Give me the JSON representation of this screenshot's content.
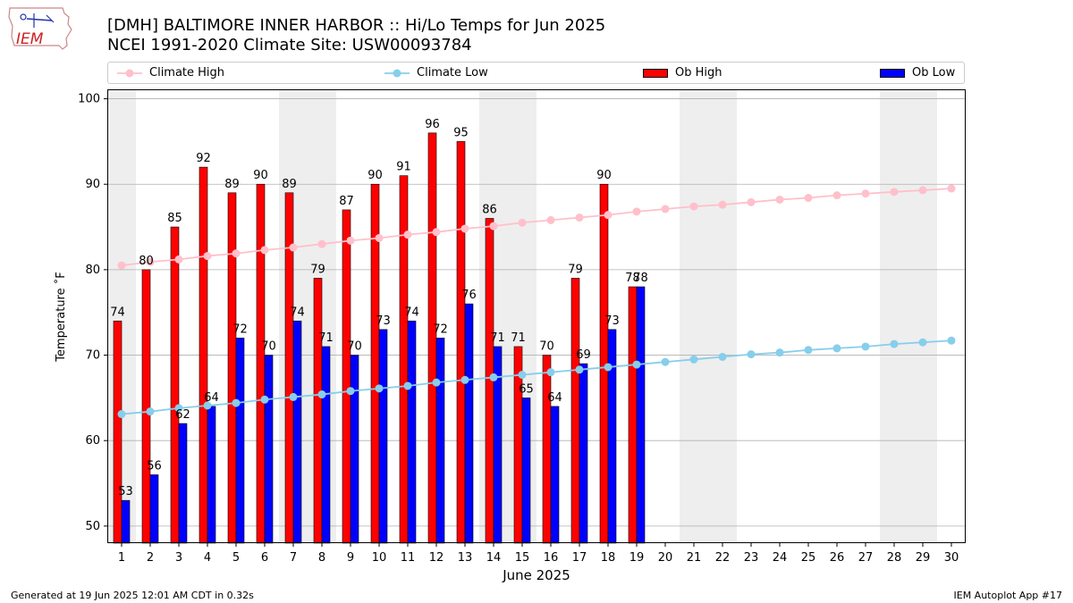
{
  "header": {
    "logo_text": "IEM",
    "title_line1": "[DMH] BALTIMORE INNER HARBOR :: Hi/Lo Temps for Jun 2025",
    "title_line2": "NCEI 1991-2020 Climate Site: USW00093784"
  },
  "legend": [
    {
      "key": "climate_high",
      "label": "Climate High"
    },
    {
      "key": "climate_low",
      "label": "Climate Low"
    },
    {
      "key": "ob_high",
      "label": "Ob High"
    },
    {
      "key": "ob_low",
      "label": "Ob Low"
    }
  ],
  "colors": {
    "climate_high": "#ffc0cb",
    "climate_low": "#87ceeb",
    "ob_high": "#ff0000",
    "ob_low": "#0000ff",
    "weekend_shade": "#eeeeee",
    "grid": "#b0b0b0"
  },
  "footer": {
    "left": "Generated at 19 Jun 2025 12:01 AM CDT in 0.32s",
    "right": "IEM Autoplot App #17"
  },
  "chart_data": {
    "type": "bar",
    "xlabel": "June 2025",
    "ylabel": "Temperature ˚F",
    "ylim": [
      48,
      101
    ],
    "yticks": [
      50,
      60,
      70,
      80,
      90,
      100
    ],
    "grid": true,
    "legend_position": "top",
    "days": [
      1,
      2,
      3,
      4,
      5,
      6,
      7,
      8,
      9,
      10,
      11,
      12,
      13,
      14,
      15,
      16,
      17,
      18,
      19,
      20,
      21,
      22,
      23,
      24,
      25,
      26,
      27,
      28,
      29,
      30
    ],
    "weekend_shaded_days": [
      1,
      7,
      8,
      14,
      15,
      21,
      22,
      28,
      29
    ],
    "series": [
      {
        "name": "Ob High",
        "type": "bar",
        "values": [
          74,
          80,
          85,
          92,
          89,
          90,
          89,
          79,
          87,
          90,
          91,
          96,
          95,
          86,
          71,
          70,
          79,
          90,
          78
        ]
      },
      {
        "name": "Ob Low",
        "type": "bar",
        "values": [
          53,
          56,
          62,
          64,
          72,
          70,
          74,
          71,
          70,
          73,
          74,
          72,
          76,
          71,
          65,
          64,
          69,
          73,
          78
        ]
      },
      {
        "name": "Climate High",
        "type": "line",
        "values": [
          80.5,
          80.9,
          81.2,
          81.6,
          81.9,
          82.3,
          82.6,
          83.0,
          83.4,
          83.7,
          84.1,
          84.4,
          84.8,
          85.1,
          85.5,
          85.8,
          86.1,
          86.4,
          86.8,
          87.1,
          87.4,
          87.6,
          87.9,
          88.2,
          88.4,
          88.7,
          88.9,
          89.1,
          89.3,
          89.5
        ]
      },
      {
        "name": "Climate Low",
        "type": "line",
        "values": [
          63.1,
          63.4,
          63.8,
          64.1,
          64.4,
          64.8,
          65.1,
          65.4,
          65.8,
          66.1,
          66.4,
          66.8,
          67.1,
          67.4,
          67.7,
          68.0,
          68.3,
          68.6,
          68.9,
          69.2,
          69.5,
          69.8,
          70.1,
          70.3,
          70.6,
          70.8,
          71.0,
          71.3,
          71.5,
          71.7
        ]
      }
    ]
  }
}
